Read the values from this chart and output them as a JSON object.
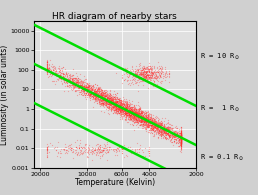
{
  "title": "HR diagram of nearby stars",
  "xlabel": "Temperature (Kelvin)",
  "ylabel": "Luminosity (in solar units)",
  "bg_color": "#d0d0d0",
  "plot_bg_color": "#e0e0e0",
  "xmin": 2000,
  "xmax": 22000,
  "ymin": 0.001,
  "ymax": 30000,
  "dot_color": "#ff3030",
  "dot_alpha": 0.35,
  "dot_size": 0.8,
  "line_color": "#00dd00",
  "line_width": 1.8,
  "radii_solar": [
    10,
    1,
    0.1
  ],
  "T_sun": 5778.0,
  "seed": 1234,
  "n_main": 4000,
  "n_giant": 500,
  "n_wd": 300
}
